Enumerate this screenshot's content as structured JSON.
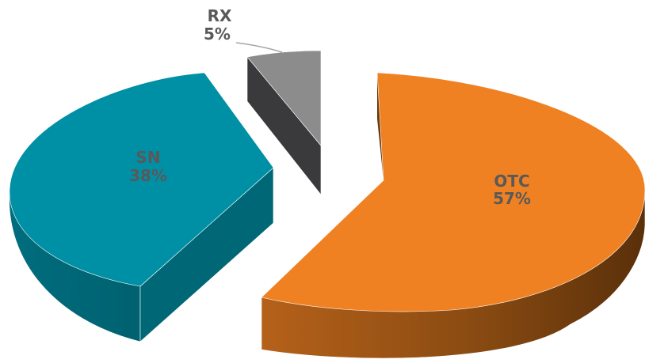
{
  "chart_data": {
    "type": "pie",
    "style": "3d-exploded",
    "title": "",
    "legend": "none",
    "slices": [
      {
        "name": "OTC",
        "value": 57,
        "label": "57%",
        "color": "#ef8122",
        "side_color": "#7a4410"
      },
      {
        "name": "SN",
        "value": 38,
        "label": "38%",
        "color": "#0090a6",
        "side_color": "#006373"
      },
      {
        "name": "RX",
        "value": 5,
        "label": "5%",
        "color": "#8c8c8c",
        "side_color": "#3a3a3c"
      }
    ]
  }
}
